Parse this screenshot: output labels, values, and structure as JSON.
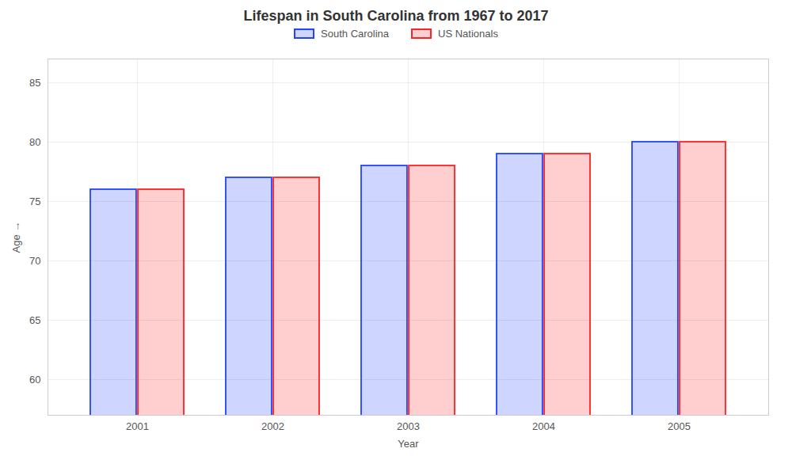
{
  "chart_data": {
    "type": "bar",
    "title": "Lifespan in South Carolina from 1967 to 2017",
    "x_label": "Year",
    "y_label": "Age",
    "categories": [
      "2001",
      "2002",
      "2003",
      "2004",
      "2005"
    ],
    "series": [
      {
        "name": "South Carolina",
        "color": "#2244ff",
        "values": [
          76,
          77,
          78,
          79,
          80
        ]
      },
      {
        "name": "US Nationals",
        "color": "#ff2222",
        "values": [
          76,
          77,
          78,
          79,
          80
        ]
      }
    ],
    "ylim": [
      57,
      87
    ],
    "yticks": [
      60,
      65,
      70,
      75,
      80,
      85
    ],
    "grid": true,
    "legend": "top"
  }
}
